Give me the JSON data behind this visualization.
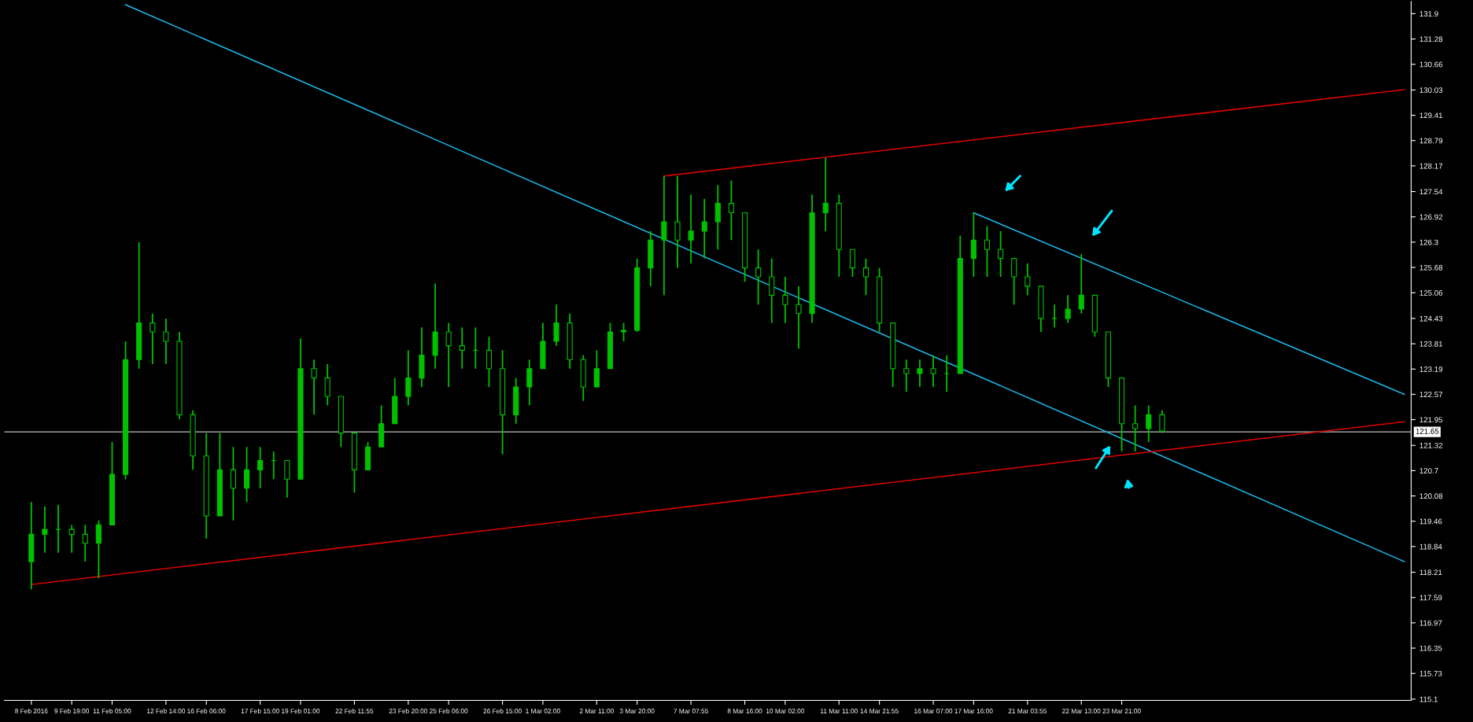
{
  "chart_data": {
    "type": "candlestick",
    "color": "#00c000",
    "categories": [
      "8 Feb 2016",
      null,
      null,
      "9 Feb 19:00",
      null,
      null,
      "11 Feb 05:00",
      null,
      null,
      null,
      "12 Feb 14:00",
      null,
      null,
      "16 Feb 06:00",
      null,
      null,
      null,
      "17 Feb 15:00",
      null,
      null,
      "19 Feb 01:00",
      null,
      null,
      null,
      "22 Feb 11:55",
      null,
      null,
      null,
      "23 Feb 20:00",
      null,
      null,
      "25 Feb 06:00",
      null,
      null,
      null,
      "26 Feb 15:00",
      null,
      null,
      "1 Mar 02:00",
      null,
      null,
      null,
      "2 Mar 11:00",
      null,
      null,
      "3 Mar 20:00",
      null,
      null,
      null,
      "7 Mar 07:55",
      null,
      null,
      null,
      "8 Mar 16:00",
      null,
      null,
      "10 Mar 02:00",
      null,
      null,
      null,
      "11 Mar 11:00",
      null,
      null,
      "14 Mar 21:55",
      null,
      null,
      null,
      "16 Mar 07:00",
      null,
      null,
      "17 Mar 16:00",
      null,
      null,
      null,
      "21 Mar 03:55",
      null,
      null,
      null,
      "22 Mar 13:00",
      null,
      null,
      "23 Mar 21:00",
      null,
      null,
      null,
      null,
      null,
      null,
      null,
      null,
      null,
      null,
      null,
      null,
      null,
      null,
      null,
      null,
      null,
      null,
      null,
      null,
      null
    ],
    "ohlc": [
      [
        118.47,
        119.93,
        117.79,
        119.14
      ],
      [
        119.14,
        119.82,
        118.69,
        119.26
      ],
      [
        119.26,
        119.86,
        118.69,
        119.26
      ],
      [
        119.26,
        119.37,
        118.69,
        119.14
      ],
      [
        119.14,
        119.37,
        118.47,
        118.92
      ],
      [
        118.92,
        119.48,
        118.06,
        119.37
      ],
      [
        119.37,
        121.4,
        119.37,
        120.61
      ],
      [
        120.61,
        123.87,
        120.49,
        123.42
      ],
      [
        123.42,
        126.3,
        123.2,
        124.32
      ],
      [
        124.32,
        124.55,
        123.31,
        124.1
      ],
      [
        124.1,
        124.43,
        123.31,
        123.87
      ],
      [
        123.87,
        124.1,
        121.96,
        122.07
      ],
      [
        122.07,
        122.18,
        120.72,
        121.06
      ],
      [
        121.06,
        121.62,
        119.03,
        119.59
      ],
      [
        119.59,
        121.62,
        119.59,
        120.72
      ],
      [
        120.72,
        121.28,
        119.48,
        120.27
      ],
      [
        120.27,
        121.28,
        119.93,
        120.72
      ],
      [
        120.72,
        121.28,
        120.27,
        120.95
      ],
      [
        120.95,
        121.17,
        120.49,
        120.95
      ],
      [
        120.95,
        120.95,
        120.04,
        120.49
      ],
      [
        120.49,
        123.94,
        120.49,
        123.2
      ],
      [
        123.2,
        123.42,
        122.07,
        122.97
      ],
      [
        122.97,
        123.31,
        122.3,
        122.52
      ],
      [
        122.52,
        122.52,
        121.28,
        121.62
      ],
      [
        121.62,
        121.62,
        120.16,
        120.72
      ],
      [
        120.72,
        121.4,
        120.72,
        121.28
      ],
      [
        121.28,
        122.3,
        121.28,
        121.85
      ],
      [
        121.85,
        122.97,
        121.85,
        122.52
      ],
      [
        122.52,
        123.65,
        122.3,
        122.97
      ],
      [
        122.97,
        124.21,
        122.75,
        123.53
      ],
      [
        123.53,
        125.29,
        123.2,
        124.1
      ],
      [
        124.1,
        124.32,
        122.75,
        123.76
      ],
      [
        123.76,
        124.21,
        123.2,
        123.65
      ],
      [
        123.65,
        124.21,
        123.2,
        123.65
      ],
      [
        123.65,
        123.98,
        122.75,
        123.2
      ],
      [
        123.2,
        123.65,
        121.1,
        122.07
      ],
      [
        122.07,
        122.97,
        121.85,
        122.75
      ],
      [
        122.75,
        123.42,
        122.3,
        123.2
      ],
      [
        123.2,
        124.32,
        123.2,
        123.87
      ],
      [
        123.87,
        124.77,
        123.76,
        124.32
      ],
      [
        124.32,
        124.55,
        123.2,
        123.42
      ],
      [
        123.42,
        123.53,
        122.41,
        122.75
      ],
      [
        122.75,
        123.65,
        122.75,
        123.2
      ],
      [
        123.2,
        124.32,
        123.2,
        124.1
      ],
      [
        124.1,
        124.32,
        123.87,
        124.14
      ],
      [
        124.14,
        125.9,
        124.1,
        125.67
      ],
      [
        125.67,
        126.57,
        125.22,
        126.35
      ],
      [
        126.35,
        127.92,
        125.0,
        126.8
      ],
      [
        126.8,
        127.92,
        125.67,
        126.35
      ],
      [
        126.35,
        127.47,
        125.78,
        126.57
      ],
      [
        126.57,
        127.36,
        125.9,
        126.8
      ],
      [
        126.8,
        127.7,
        126.12,
        127.25
      ],
      [
        127.25,
        127.81,
        126.35,
        127.02
      ],
      [
        127.02,
        127.02,
        125.33,
        125.67
      ],
      [
        125.67,
        126.12,
        124.77,
        125.45
      ],
      [
        125.45,
        125.9,
        124.32,
        125.0
      ],
      [
        125.0,
        125.45,
        124.32,
        124.77
      ],
      [
        124.77,
        125.22,
        123.69,
        124.55
      ],
      [
        124.55,
        127.47,
        124.32,
        127.02
      ],
      [
        127.02,
        128.37,
        126.57,
        127.25
      ],
      [
        127.25,
        127.47,
        125.45,
        126.12
      ],
      [
        126.12,
        126.12,
        125.45,
        125.67
      ],
      [
        125.67,
        125.9,
        125.0,
        125.45
      ],
      [
        125.45,
        125.67,
        124.1,
        124.32
      ],
      [
        124.32,
        124.32,
        122.75,
        123.2
      ],
      [
        123.2,
        123.42,
        122.63,
        123.08
      ],
      [
        123.08,
        123.42,
        122.75,
        123.2
      ],
      [
        123.2,
        123.53,
        122.75,
        123.08
      ],
      [
        123.08,
        123.53,
        122.63,
        123.08
      ],
      [
        123.08,
        126.46,
        123.08,
        125.9
      ],
      [
        125.9,
        127.02,
        125.45,
        126.35
      ],
      [
        126.35,
        126.69,
        125.45,
        126.12
      ],
      [
        126.12,
        126.57,
        125.45,
        125.9
      ],
      [
        125.9,
        125.9,
        124.77,
        125.45
      ],
      [
        125.45,
        125.78,
        125.0,
        125.22
      ],
      [
        125.22,
        125.22,
        124.1,
        124.43
      ],
      [
        124.43,
        124.77,
        124.21,
        124.43
      ],
      [
        124.43,
        125.0,
        124.32,
        124.66
      ],
      [
        124.66,
        126.01,
        124.55,
        125.0
      ],
      [
        125.0,
        125.0,
        123.98,
        124.1
      ],
      [
        124.1,
        124.1,
        122.75,
        122.97
      ],
      [
        122.97,
        122.97,
        121.17,
        121.85
      ],
      [
        121.85,
        122.3,
        121.17,
        121.73
      ],
      [
        121.73,
        122.3,
        121.4,
        122.07
      ],
      [
        122.07,
        122.18,
        121.62,
        121.67
      ],
      null,
      null,
      null,
      null,
      null,
      null,
      null,
      null,
      null,
      null,
      null,
      null,
      null,
      null,
      null,
      null,
      null,
      null
    ],
    "series": [
      {
        "type": "line",
        "color": "#1ab8e8",
        "values": [
          null,
          null,
          null,
          null,
          null,
          null,
          null,
          132.12,
          null,
          null,
          null,
          null,
          null,
          null,
          null,
          null,
          null,
          null,
          null,
          null,
          null,
          null,
          null,
          null,
          null,
          null,
          null,
          null,
          null,
          null,
          null,
          null,
          null,
          null,
          null,
          null,
          null,
          null,
          null,
          null,
          null,
          null,
          null,
          null,
          null,
          null,
          null,
          null,
          null,
          null,
          null,
          null,
          null,
          null,
          null,
          null,
          null,
          null,
          null,
          null,
          null,
          null,
          null,
          null,
          null,
          null,
          null,
          null,
          null,
          null,
          null,
          null,
          null,
          null,
          null,
          null,
          null,
          null,
          null,
          null,
          null,
          null,
          null,
          null,
          null,
          null,
          null,
          null,
          null,
          null,
          null,
          null,
          null,
          null,
          null,
          null,
          null,
          null,
          null,
          null,
          null,
          null,
          118.47
        ]
      },
      {
        "type": "line",
        "color": "#1ab8e8",
        "values": [
          null,
          null,
          null,
          null,
          null,
          null,
          null,
          null,
          null,
          null,
          null,
          null,
          null,
          null,
          null,
          null,
          null,
          null,
          null,
          null,
          null,
          null,
          null,
          null,
          null,
          null,
          null,
          null,
          null,
          null,
          null,
          null,
          null,
          null,
          null,
          null,
          null,
          null,
          null,
          null,
          null,
          null,
          null,
          null,
          null,
          null,
          null,
          null,
          null,
          null,
          null,
          null,
          null,
          null,
          null,
          null,
          null,
          null,
          null,
          null,
          null,
          null,
          null,
          null,
          null,
          null,
          null,
          null,
          null,
          null,
          127.02,
          null,
          null,
          null,
          null,
          null,
          null,
          null,
          null,
          null,
          null,
          null,
          null,
          null,
          null,
          null,
          null,
          null,
          null,
          null,
          null,
          null,
          null,
          null,
          null,
          null,
          null,
          null,
          null,
          null,
          null,
          null,
          122.57
        ]
      },
      {
        "type": "line",
        "color": "#e00000",
        "values": [
          null,
          null,
          null,
          null,
          null,
          null,
          null,
          null,
          null,
          null,
          null,
          null,
          null,
          null,
          null,
          null,
          null,
          null,
          null,
          null,
          null,
          null,
          null,
          null,
          null,
          null,
          null,
          null,
          null,
          null,
          null,
          null,
          null,
          null,
          null,
          null,
          null,
          null,
          null,
          null,
          null,
          null,
          null,
          null,
          null,
          null,
          null,
          127.92,
          null,
          null,
          null,
          null,
          null,
          null,
          null,
          null,
          null,
          null,
          null,
          null,
          null,
          null,
          null,
          null,
          null,
          null,
          null,
          null,
          null,
          null,
          null,
          null,
          null,
          null,
          null,
          null,
          null,
          null,
          null,
          null,
          null,
          null,
          null,
          null,
          null,
          null,
          null,
          null,
          null,
          null,
          null,
          null,
          null,
          null,
          null,
          null,
          null,
          null,
          null,
          null,
          null,
          null,
          130.04
        ]
      },
      {
        "type": "line",
        "color": "#e00000",
        "values": [
          117.91,
          null,
          null,
          null,
          null,
          null,
          null,
          null,
          null,
          null,
          null,
          null,
          null,
          null,
          null,
          null,
          null,
          null,
          null,
          null,
          null,
          null,
          null,
          null,
          null,
          null,
          null,
          null,
          null,
          null,
          null,
          null,
          null,
          null,
          null,
          null,
          null,
          null,
          null,
          null,
          null,
          null,
          null,
          null,
          null,
          null,
          null,
          null,
          null,
          null,
          null,
          null,
          null,
          null,
          null,
          null,
          null,
          null,
          null,
          null,
          null,
          null,
          null,
          null,
          null,
          null,
          null,
          null,
          null,
          null,
          null,
          null,
          null,
          null,
          null,
          null,
          null,
          null,
          null,
          null,
          null,
          null,
          null,
          null,
          null,
          null,
          null,
          null,
          null,
          null,
          null,
          null,
          null,
          null,
          null,
          null,
          null,
          null,
          null,
          null,
          null,
          null,
          121.9
        ]
      }
    ],
    "ref_lines": [
      {
        "axis": "y",
        "value": 121.65,
        "label": "121.65",
        "color": "#c0c0c0"
      }
    ],
    "ylim": [
      115.07,
      132.2
    ],
    "yticks": [
      131.9,
      131.28,
      130.66,
      130.03,
      129.41,
      128.79,
      128.17,
      127.54,
      126.92,
      126.3,
      125.68,
      125.06,
      124.43,
      123.81,
      123.19,
      122.57,
      121.95,
      121.32,
      120.7,
      120.08,
      119.46,
      118.84,
      118.21,
      117.59,
      116.97,
      116.35,
      115.73,
      115.1
    ]
  }
}
